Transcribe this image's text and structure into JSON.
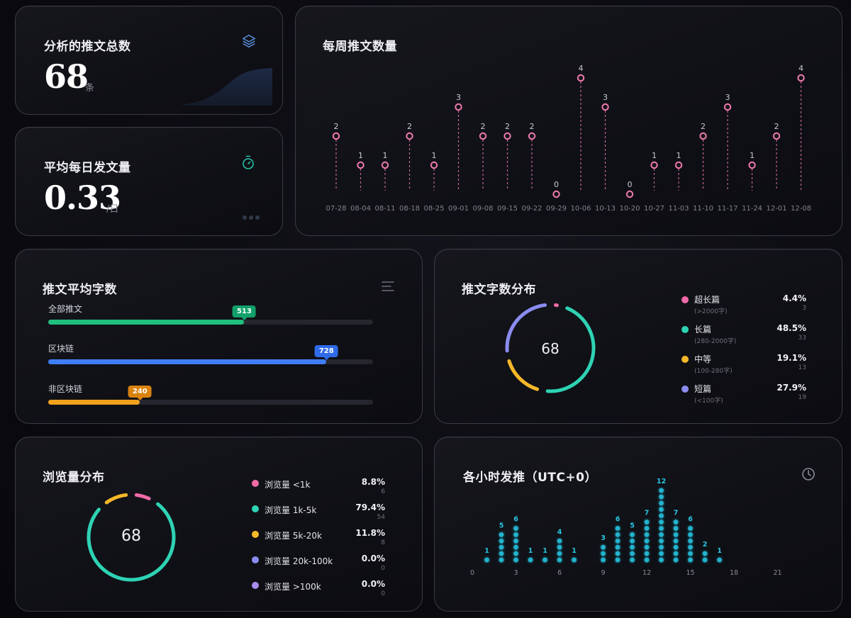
{
  "total_card": {
    "title": "分析的推文总数",
    "value": "68",
    "unit": "条",
    "icon": "layers-icon"
  },
  "daily_card": {
    "title": "平均每日发文量",
    "value": "0.33",
    "unit": "/日",
    "icon": "stopwatch-icon"
  },
  "weekly_card": {
    "title": "每周推文数量",
    "chart_data": {
      "type": "lollipop",
      "categories": [
        "07-28",
        "08-04",
        "08-11",
        "08-18",
        "08-25",
        "09-01",
        "09-08",
        "09-15",
        "09-22",
        "09-29",
        "10-06",
        "10-13",
        "10-20",
        "10-27",
        "11-03",
        "11-10",
        "11-17",
        "11-24",
        "12-01",
        "12-08"
      ],
      "values": [
        2,
        1,
        1,
        2,
        1,
        3,
        2,
        2,
        2,
        0,
        4,
        3,
        0,
        1,
        1,
        2,
        3,
        1,
        2,
        4
      ],
      "color": "#f07ab0"
    }
  },
  "avg_words_card": {
    "title": "推文平均字数",
    "icon": "menu-icon",
    "chart_data": {
      "type": "bar",
      "categories": [
        "全部推文",
        "区块链",
        "非区块链"
      ],
      "values": [
        513,
        728,
        240
      ],
      "value_labels": [
        "513",
        "728",
        "240"
      ],
      "colors": [
        "#1fbf7e",
        "#3f7ef6",
        "#f2a21c"
      ],
      "tag_colors": [
        "#12a06a",
        "#2f6ae8",
        "#d9820e"
      ],
      "xlim": [
        0,
        850
      ]
    }
  },
  "words_dist_card": {
    "title": "推文字数分布",
    "center": "68",
    "chart_data": {
      "type": "pie",
      "categories": [
        "超长篇",
        "长篇",
        "中等",
        "短篇"
      ],
      "values": [
        3,
        33,
        13,
        19
      ],
      "percents": [
        "4.4%",
        "48.5%",
        "19.1%",
        "27.9%"
      ],
      "counts": [
        "3",
        "33",
        "13",
        "19"
      ],
      "subs": [
        "(>2000字)",
        "(280-2000字)",
        "(100-280字)",
        "(<100字)"
      ],
      "colors": [
        "#f06aa8",
        "#2ed3b4",
        "#f5b82a",
        "#8b8cf0"
      ]
    }
  },
  "views_card": {
    "title": "浏览量分布",
    "center": "68",
    "chart_data": {
      "type": "pie",
      "categories": [
        "浏览量 <1k",
        "浏览量 1k-5k",
        "浏览量 5k-20k",
        "浏览量 20k-100k",
        "浏览量 >100k"
      ],
      "values": [
        6,
        54,
        8,
        0,
        0
      ],
      "percents": [
        "8.8%",
        "79.4%",
        "11.8%",
        "0.0%",
        "0.0%"
      ],
      "counts": [
        "6",
        "54",
        "8",
        "0",
        "0"
      ],
      "colors": [
        "#f06aa8",
        "#2ed3b4",
        "#f5b82a",
        "#8b8cf0",
        "#a98cf0"
      ]
    }
  },
  "hourly_card": {
    "title": "各小时发推（UTC+0）",
    "icon": "clock-icon",
    "chart_data": {
      "type": "dot-column",
      "x": [
        0,
        1,
        2,
        3,
        4,
        5,
        6,
        7,
        8,
        9,
        10,
        11,
        12,
        13,
        14,
        15,
        16,
        17,
        18,
        19,
        20,
        21,
        22,
        23
      ],
      "values": [
        0,
        1,
        5,
        6,
        1,
        1,
        4,
        1,
        0,
        3,
        6,
        5,
        7,
        12,
        7,
        6,
        2,
        1,
        0,
        0,
        0,
        0,
        0,
        0
      ],
      "ticks": [
        "0",
        "3",
        "6",
        "9",
        "12",
        "15",
        "18",
        "21"
      ],
      "tick_hours": [
        0,
        3,
        6,
        9,
        12,
        15,
        18,
        21
      ],
      "color": "#26c6e4"
    }
  }
}
